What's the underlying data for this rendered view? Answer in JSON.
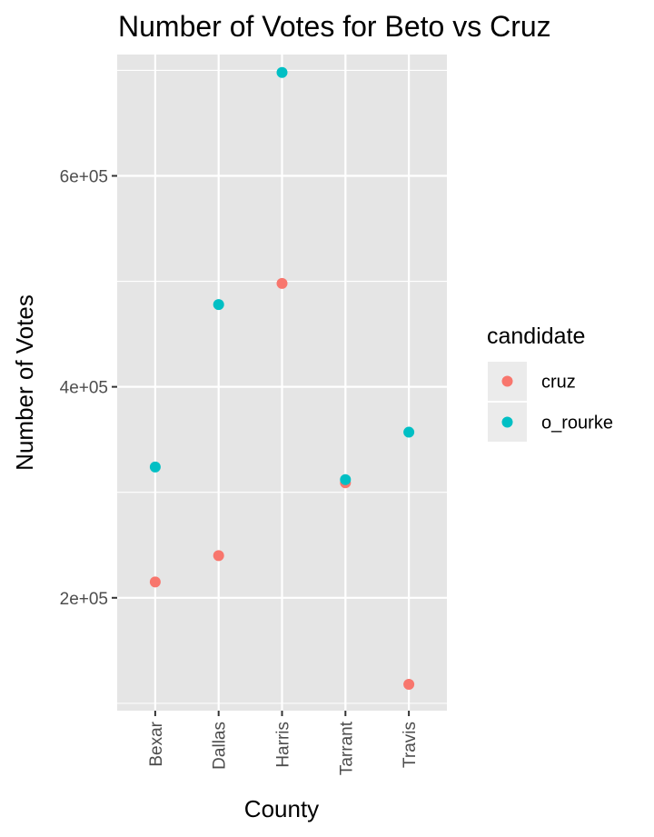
{
  "chart_data": {
    "type": "scatter",
    "title": "Number of Votes for Beto vs Cruz",
    "xlabel": "County",
    "ylabel": "Number of Votes",
    "categories": [
      "Bexar",
      "Dallas",
      "Harris",
      "Tarrant",
      "Travis"
    ],
    "y_ticks": [
      200000,
      400000,
      600000
    ],
    "y_tick_labels": [
      "2e+05",
      "4e+05",
      "6e+05"
    ],
    "ylim": [
      93000,
      715000
    ],
    "grid": true,
    "panel_background": "#e5e5e5",
    "legend": {
      "title": "candidate",
      "position": "right"
    },
    "series": [
      {
        "name": "cruz",
        "color": "#f8766d",
        "values": [
          215000,
          240000,
          498000,
          309000,
          118000
        ]
      },
      {
        "name": "o_rourke",
        "color": "#00bfc4",
        "values": [
          324000,
          478000,
          698000,
          312000,
          357000
        ]
      }
    ]
  }
}
